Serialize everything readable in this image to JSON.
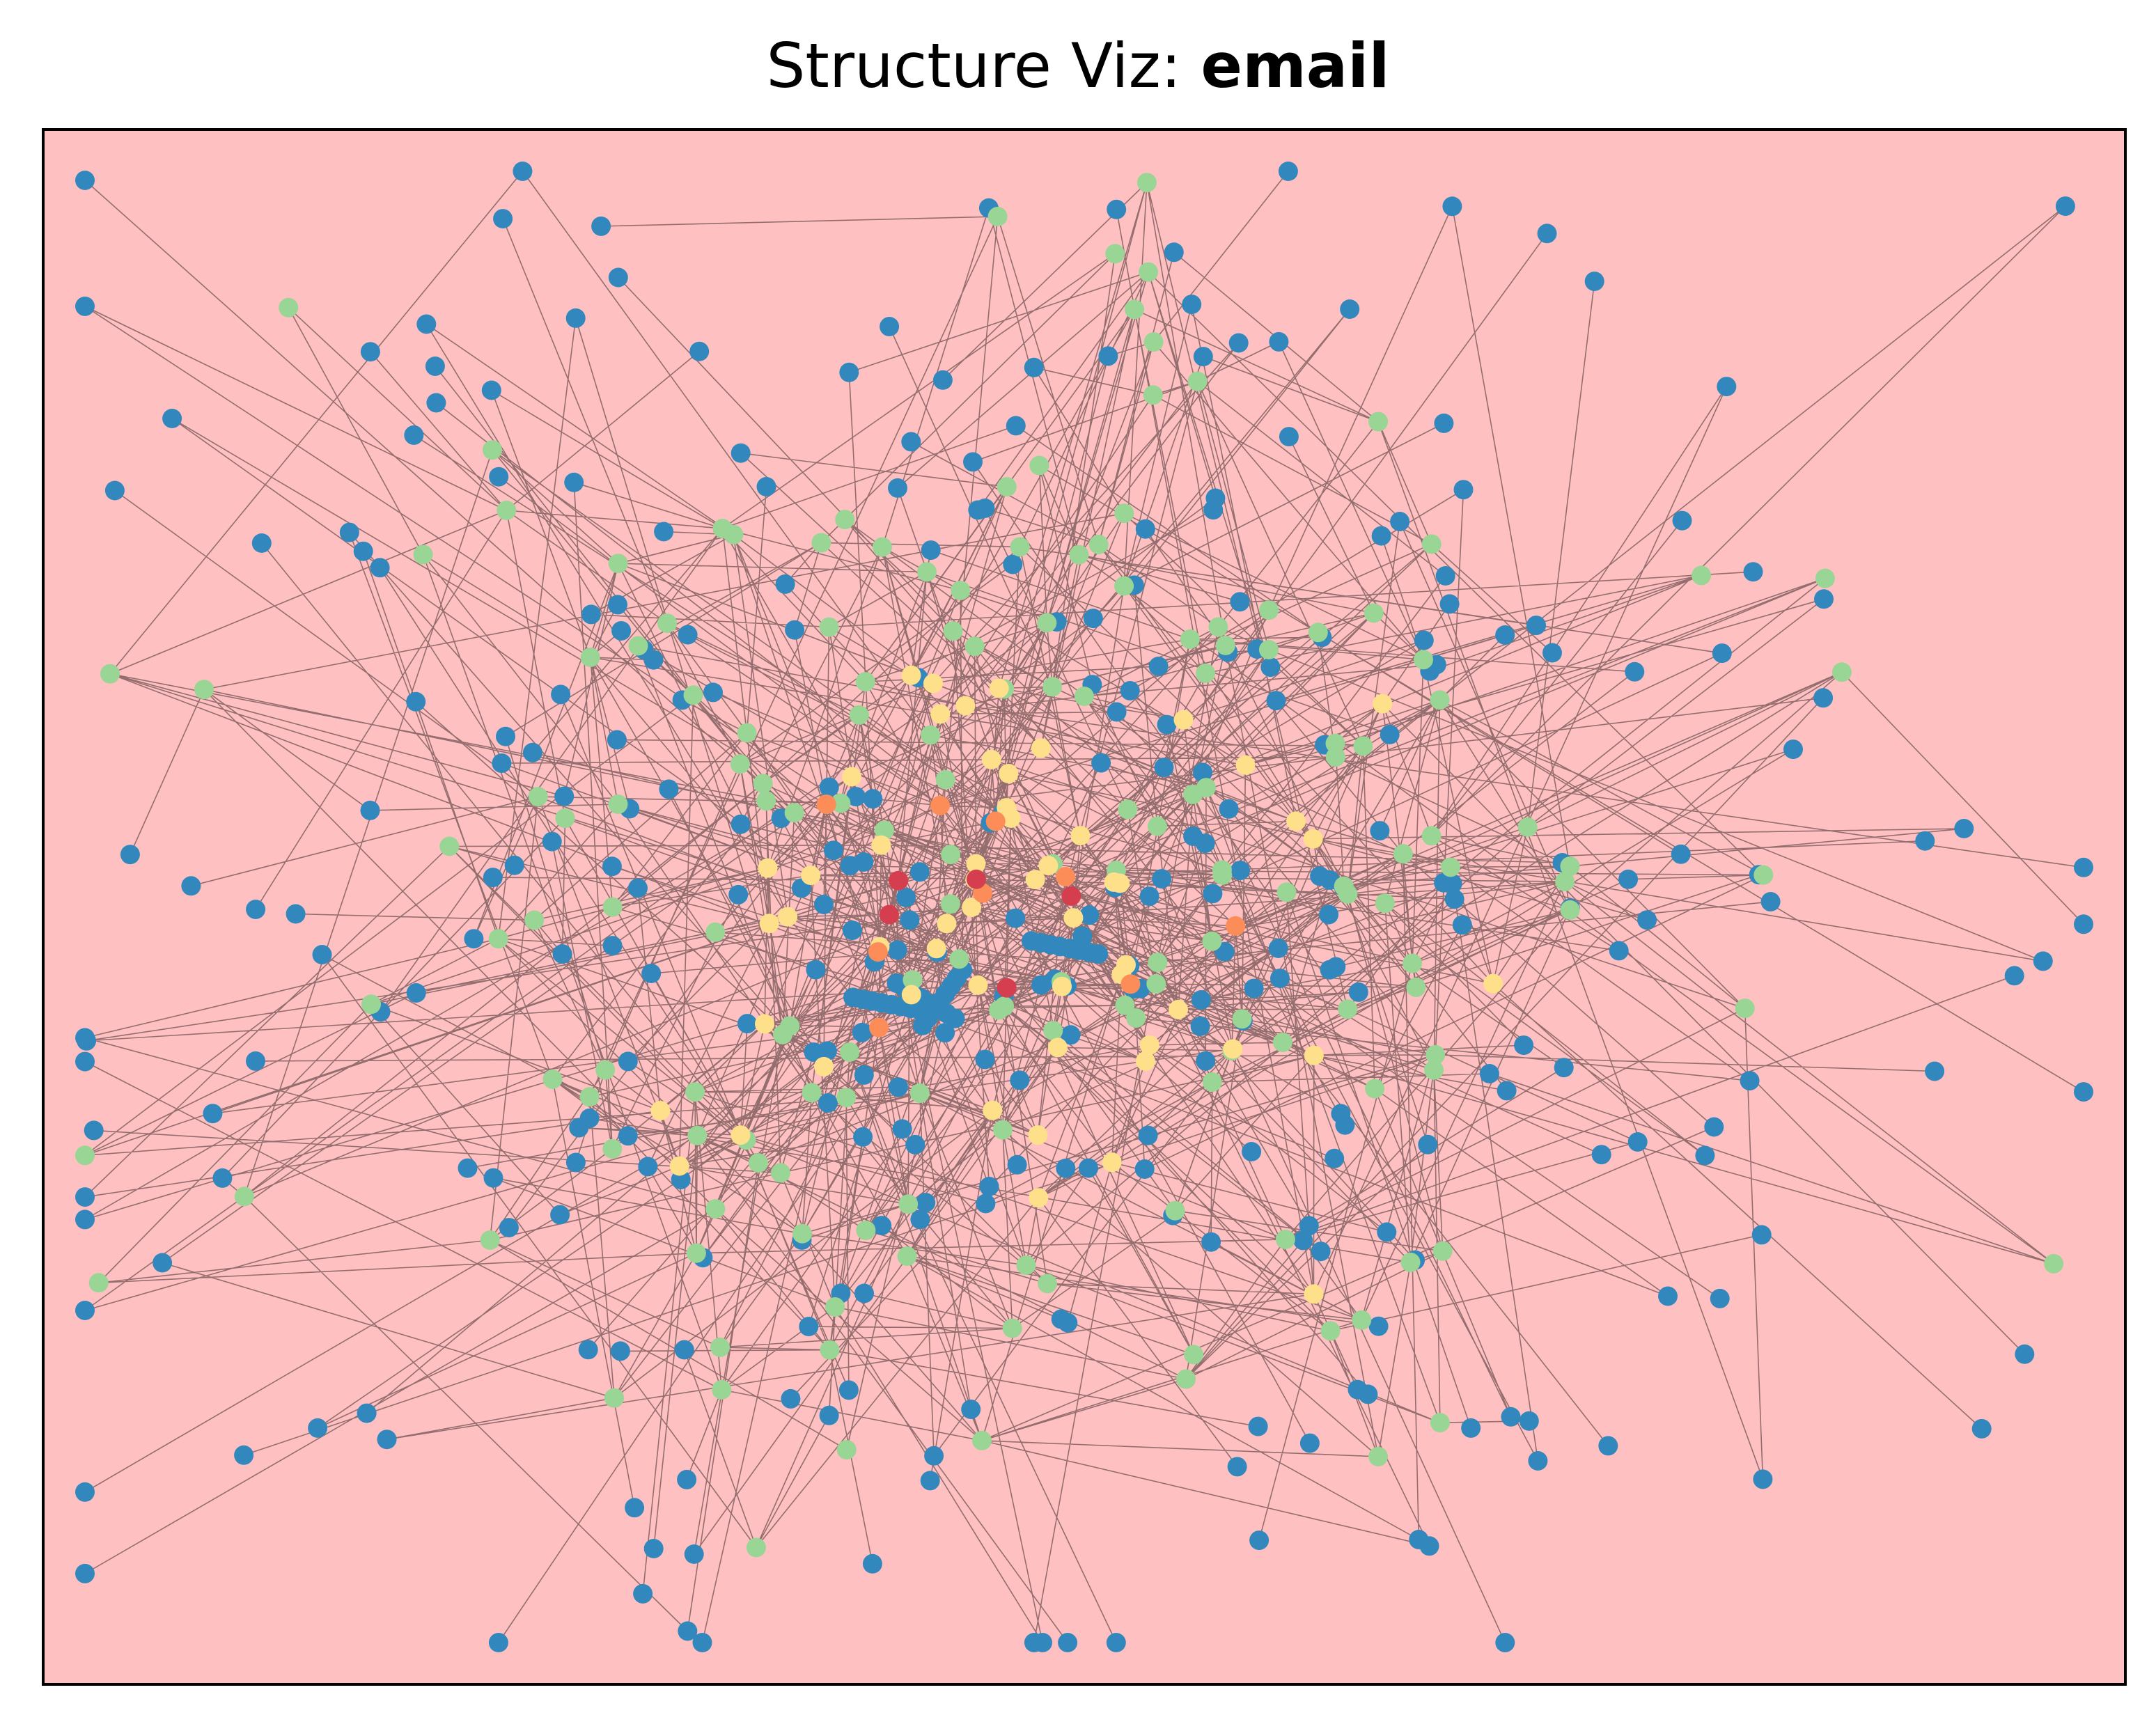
{
  "title": {
    "prefix": "Structure Viz: ",
    "name": "email"
  },
  "colors": {
    "background": "#ffc0c2",
    "frame": "#000000",
    "edge": "#3d2a2a",
    "node_palette": [
      "#3288bd",
      "#99d594",
      "#fee08b",
      "#fc8d59",
      "#d53e4f"
    ]
  }
}
